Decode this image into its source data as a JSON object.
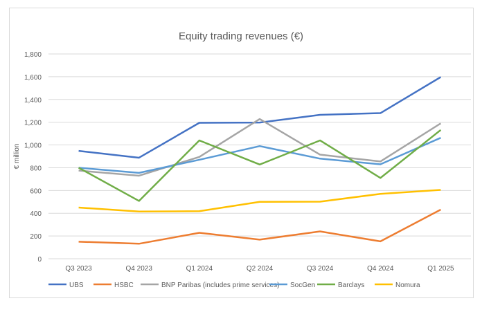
{
  "chart_data": {
    "type": "line",
    "title": "Equity trading revenues (€)",
    "xlabel": "",
    "ylabel": "€ million",
    "ylim": [
      0,
      1800
    ],
    "yticks": [
      "0",
      "200",
      "400",
      "600",
      "800",
      "1,000",
      "1,200",
      "1,400",
      "1,600",
      "1,800"
    ],
    "ytick_values": [
      0,
      200,
      400,
      600,
      800,
      1000,
      1200,
      1400,
      1600,
      1800
    ],
    "grid": true,
    "legend": "bottom",
    "categories": [
      "Q3 2023",
      "Q4 2023",
      "Q1 2024",
      "Q2 2024",
      "Q3 2024",
      "Q4 2024",
      "Q1 2025"
    ],
    "series": [
      {
        "name": "UBS",
        "color": "#4472c4",
        "values": [
          948,
          888,
          1195,
          1197,
          1265,
          1280,
          1597
        ]
      },
      {
        "name": "HSBC",
        "color": "#ed7d31",
        "values": [
          150,
          132,
          228,
          168,
          240,
          153,
          432
        ]
      },
      {
        "name": "BNP Paribas (includes prime services)",
        "color": "#a5a5a5",
        "values": [
          775,
          730,
          895,
          1228,
          915,
          855,
          1190
        ]
      },
      {
        "name": "SocGen",
        "color": "#5b9bd5",
        "values": [
          800,
          755,
          870,
          990,
          880,
          830,
          1063
        ]
      },
      {
        "name": "Barclays",
        "color": "#70ad47",
        "values": [
          800,
          508,
          1040,
          828,
          1040,
          710,
          1132
        ]
      },
      {
        "name": "Nomura",
        "color": "#ffc000",
        "values": [
          450,
          415,
          418,
          500,
          502,
          570,
          605
        ]
      }
    ]
  }
}
